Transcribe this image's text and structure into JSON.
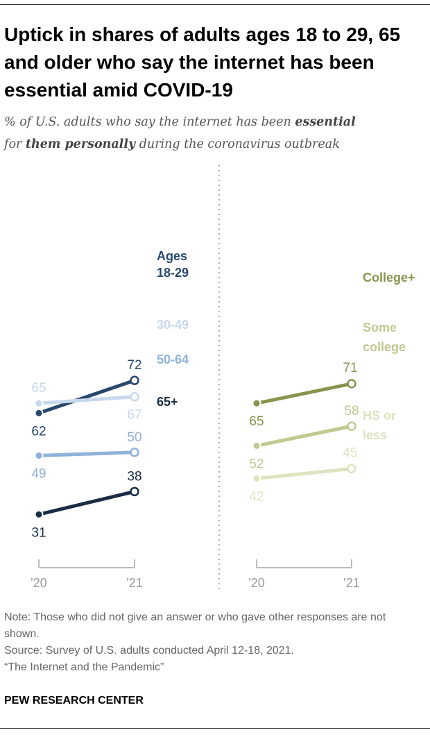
{
  "title": "Uptick in shares of adults ages 18 to 29, 65 and older who say the internet has been essential amid COVID-19",
  "subtitle": {
    "p1": "% of U.S. adults who say the internet has been ",
    "b1": "essential",
    "p2": "for ",
    "b2": "them personally",
    "p3": " during the coronavirus outbreak"
  },
  "chart_data": [
    {
      "type": "line",
      "name": "Age",
      "legend_heading": "Ages",
      "x": [
        "'20",
        "'21"
      ],
      "ylim": [
        0,
        100
      ],
      "series": [
        {
          "name": "18-29",
          "values": [
            62,
            72
          ],
          "color": "#27476e"
        },
        {
          "name": "30-49",
          "values": [
            65,
            67
          ],
          "color": "#c8d8ec"
        },
        {
          "name": "50-64",
          "values": [
            49,
            50
          ],
          "color": "#8fb1db"
        },
        {
          "name": "65+",
          "values": [
            31,
            38
          ],
          "color": "#1a2c45"
        }
      ]
    },
    {
      "type": "line",
      "name": "Education",
      "x": [
        "'20",
        "'21"
      ],
      "ylim": [
        0,
        100
      ],
      "series": [
        {
          "name": "College+",
          "values": [
            65,
            71
          ],
          "color": "#8a934d"
        },
        {
          "name": "Some college",
          "values": [
            52,
            58
          ],
          "color": "#c2c890"
        },
        {
          "name": "HS or less",
          "values": [
            42,
            45
          ],
          "color": "#dfe2bf"
        }
      ]
    }
  ],
  "notes": {
    "note": "Note: Those who did not give an answer or who gave other responses are not shown.",
    "source": "Source: Survey of U.S. adults conducted April 12-18, 2021.",
    "report": "“The Internet and the Pandemic”"
  },
  "brand": "PEW RESEARCH CENTER"
}
